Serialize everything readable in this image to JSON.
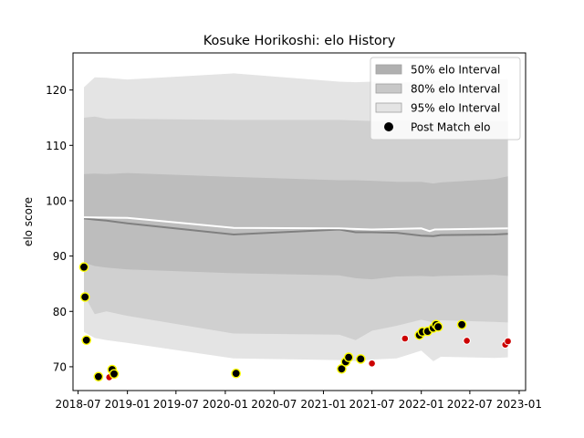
{
  "chart_data": {
    "type": "scatter",
    "title": "Kosuke Horikoshi: elo History",
    "xlabel": "",
    "ylabel": "elo score",
    "xlim": [
      "2018-06-12",
      "2023-01-25"
    ],
    "ylim": [
      65.7,
      126.7
    ],
    "x_ticks": [
      "2018-07",
      "2019-01",
      "2019-07",
      "2020-01",
      "2020-07",
      "2021-01",
      "2021-07",
      "2022-01",
      "2022-07",
      "2023-01"
    ],
    "y_ticks": [
      70,
      80,
      90,
      100,
      110,
      120
    ],
    "grid": false,
    "legend_position": "top-right",
    "legend": [
      {
        "label": "50% elo Interval",
        "kind": "band",
        "color": "#b0b0b0"
      },
      {
        "label": "80% elo Interval",
        "kind": "band",
        "color": "#c8c8c8"
      },
      {
        "label": "95% elo Interval",
        "kind": "band",
        "color": "#e4e4e4"
      },
      {
        "label": "Post Match elo",
        "kind": "marker",
        "color": "#000000"
      }
    ],
    "bands": {
      "x": [
        "2018-07-23",
        "2018-09-01",
        "2018-10-15",
        "2019-01-01",
        "2020-02-01",
        "2021-03-01",
        "2021-05-01",
        "2021-07-01",
        "2021-10-01",
        "2022-01-01",
        "2022-02-15",
        "2022-03-15",
        "2022-10-01",
        "2022-11-20"
      ],
      "mean": [
        96.8,
        96.6,
        96.4,
        95.9,
        93.9,
        94.8,
        94.3,
        94.3,
        94.2,
        93.7,
        93.6,
        93.8,
        93.9,
        94.0
      ],
      "p50_low": [
        88.8,
        88.2,
        87.9,
        87.6,
        86.9,
        86.5,
        86.0,
        85.8,
        86.3,
        86.4,
        86.3,
        86.4,
        86.6,
        86.4
      ],
      "p50_high": [
        104.8,
        104.9,
        104.8,
        105.0,
        104.3,
        103.7,
        103.7,
        103.6,
        103.4,
        103.4,
        103.1,
        103.3,
        103.9,
        104.4
      ],
      "p80_low": [
        83.0,
        79.5,
        80.0,
        79.2,
        76.0,
        75.8,
        74.8,
        76.5,
        77.4,
        78.5,
        78.0,
        78.4,
        78.1,
        78.0
      ],
      "p80_high": [
        115.0,
        115.2,
        114.8,
        114.8,
        114.6,
        114.6,
        114.5,
        114.4,
        114.5,
        114.5,
        114.4,
        114.5,
        114.4,
        114.4
      ],
      "p95_low": [
        76.3,
        75.2,
        74.8,
        74.3,
        71.5,
        71.2,
        71.0,
        71.3,
        71.5,
        72.9,
        71.0,
        71.8,
        71.6,
        71.7
      ],
      "p95_high": [
        120.5,
        122.3,
        122.2,
        121.9,
        123.0,
        121.5,
        121.4,
        121.5,
        121.3,
        121.5,
        121.6,
        121.8,
        121.9,
        122.0
      ]
    },
    "expected_line": {
      "color": "#ffffff",
      "x": [
        "2018-07-23",
        "2019-01-01",
        "2020-02-01",
        "2021-03-01",
        "2021-07-01",
        "2022-01-01",
        "2022-02-01",
        "2022-02-20",
        "2022-11-20"
      ],
      "values": [
        97.0,
        96.9,
        95.1,
        95.0,
        94.8,
        95.0,
        94.5,
        94.8,
        95.0
      ]
    },
    "series": [
      {
        "name": "Post Match elo",
        "marker_edge": "#ffff00",
        "points": [
          {
            "x": "2018-07-23",
            "y": 88.0,
            "result": "win",
            "color": "#000000"
          },
          {
            "x": "2018-07-27",
            "y": 82.6,
            "result": "win",
            "color": "#000000"
          },
          {
            "x": "2018-08-01",
            "y": 74.8,
            "result": "win",
            "color": "#000000"
          },
          {
            "x": "2018-09-15",
            "y": 68.2,
            "result": "win",
            "color": "#000000"
          },
          {
            "x": "2018-10-25",
            "y": 68.1,
            "result": "loss",
            "color": "#cc0000"
          },
          {
            "x": "2018-11-05",
            "y": 69.5,
            "result": "win",
            "color": "#000000"
          },
          {
            "x": "2018-11-12",
            "y": 68.7,
            "result": "win",
            "color": "#000000"
          },
          {
            "x": "2020-02-10",
            "y": 68.8,
            "result": "win",
            "color": "#000000"
          },
          {
            "x": "2021-03-10",
            "y": 69.6,
            "result": "win",
            "color": "#000000"
          },
          {
            "x": "2021-03-25",
            "y": 70.9,
            "result": "win",
            "color": "#000000"
          },
          {
            "x": "2021-04-05",
            "y": 71.7,
            "result": "win",
            "color": "#000000"
          },
          {
            "x": "2021-05-20",
            "y": 71.4,
            "result": "win",
            "color": "#000000"
          },
          {
            "x": "2021-07-01",
            "y": 70.6,
            "result": "loss",
            "color": "#cc0000"
          },
          {
            "x": "2021-11-01",
            "y": 75.1,
            "result": "loss",
            "color": "#cc0000"
          },
          {
            "x": "2021-12-25",
            "y": 75.7,
            "result": "win",
            "color": "#000000"
          },
          {
            "x": "2022-01-05",
            "y": 76.3,
            "result": "win",
            "color": "#000000"
          },
          {
            "x": "2022-01-25",
            "y": 76.4,
            "result": "win",
            "color": "#000000"
          },
          {
            "x": "2022-02-15",
            "y": 77.0,
            "result": "win",
            "color": "#000000"
          },
          {
            "x": "2022-02-25",
            "y": 77.6,
            "result": "win",
            "color": "#000000"
          },
          {
            "x": "2022-03-05",
            "y": 77.2,
            "result": "win",
            "color": "#000000"
          },
          {
            "x": "2022-06-01",
            "y": 77.6,
            "result": "win",
            "color": "#000000"
          },
          {
            "x": "2022-06-20",
            "y": 74.7,
            "result": "loss",
            "color": "#cc0000"
          },
          {
            "x": "2022-11-10",
            "y": 74.0,
            "result": "loss",
            "color": "#cc0000"
          },
          {
            "x": "2022-11-20",
            "y": 74.6,
            "result": "loss",
            "color": "#cc0000"
          }
        ]
      }
    ]
  }
}
